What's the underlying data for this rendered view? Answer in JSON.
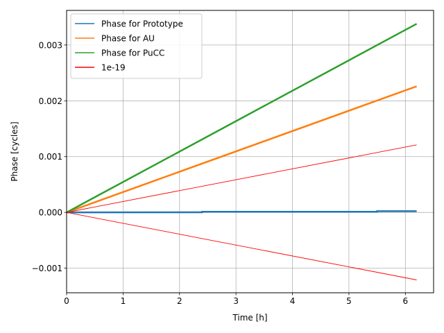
{
  "chart_data": {
    "type": "line",
    "title": "",
    "xlabel": "Time [h]",
    "ylabel": "Phase [cycles]",
    "xlim": [
      0,
      6.5
    ],
    "ylim": [
      -0.00144,
      0.00362
    ],
    "grid": true,
    "legend_position": "top-left",
    "x_ticks": [
      0,
      1,
      2,
      3,
      4,
      5,
      6
    ],
    "x_tick_labels": [
      "0",
      "1",
      "2",
      "3",
      "4",
      "5",
      "6"
    ],
    "y_ticks": [
      -0.001,
      0.0,
      0.001,
      0.002,
      0.003
    ],
    "y_tick_labels": [
      "−0.001",
      "0.000",
      "0.001",
      "0.002",
      "0.003"
    ],
    "series": [
      {
        "name": "Phase for Prototype",
        "color": "#1f77b4",
        "x": [
          0,
          2.4,
          2.4,
          5.5,
          5.5,
          6.2
        ],
        "y": [
          0,
          2e-06,
          1.2e-05,
          1.2e-05,
          2.2e-05,
          2.2e-05
        ]
      },
      {
        "name": "Phase for AU",
        "color": "#ff7f0e",
        "x": [
          0,
          6.2
        ],
        "y": [
          0,
          0.00226
        ]
      },
      {
        "name": "Phase for PuCC",
        "color": "#2ca02c",
        "x": [
          0,
          6.2
        ],
        "y": [
          0,
          0.00338
        ]
      },
      {
        "name": "1e-19",
        "color": "#ff0000",
        "x": [
          0,
          6.2
        ],
        "y": [
          0,
          0.00121
        ],
        "y_lower": [
          0,
          -0.00121
        ]
      }
    ]
  }
}
